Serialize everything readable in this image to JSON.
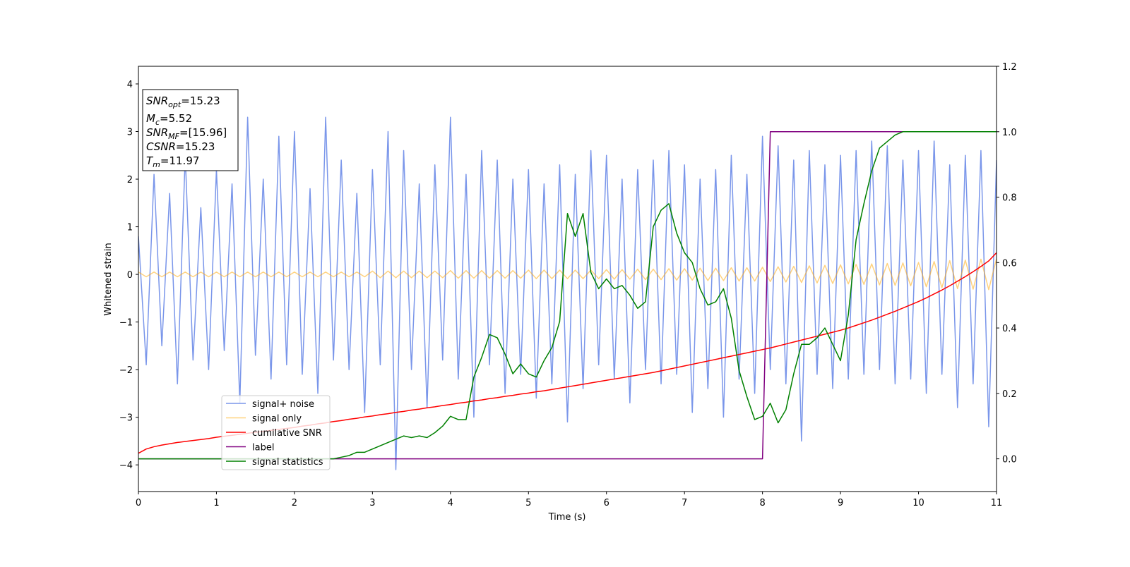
{
  "chart_data": {
    "type": "line",
    "xlabel": "Time (s)",
    "ylabel": "Whitened strain",
    "annotation": [
      {
        "main": "SNR",
        "sub": "opt",
        "rest": "=15.23"
      },
      {
        "main": "M",
        "sub": "c",
        "rest": "=5.52"
      },
      {
        "main": "SNR",
        "sub": "MF",
        "rest": "=[15.96]"
      },
      {
        "main": "CSNR",
        "rest": "=15.23"
      },
      {
        "main": "T",
        "sub": "m",
        "rest": "=11.97"
      }
    ],
    "xlim": [
      0,
      11
    ],
    "xticks": [
      0,
      1,
      2,
      3,
      4,
      5,
      6,
      7,
      8,
      9,
      10,
      11
    ],
    "ylim": [
      -4.56,
      4.37
    ],
    "yticks": [
      {
        "value": -4,
        "label": "−4"
      },
      {
        "value": -3,
        "label": "−3"
      },
      {
        "value": -2,
        "label": "−2"
      },
      {
        "value": -1,
        "label": "−1"
      },
      0,
      1,
      2,
      3,
      4
    ],
    "y2lim": [
      -0.1,
      1.2
    ],
    "y2ticks": [
      {
        "value": 0,
        "label": "0.0"
      },
      0.2,
      0.4,
      0.6,
      0.8,
      {
        "value": 1,
        "label": "1.0"
      },
      1.2
    ],
    "grid": false,
    "x": [
      0,
      0.1,
      0.2,
      0.3,
      0.4,
      0.5,
      0.6,
      0.7,
      0.8,
      0.9,
      1,
      1.1,
      1.2,
      1.3,
      1.4,
      1.5,
      1.6,
      1.7,
      1.8,
      1.9,
      2,
      2.1,
      2.2,
      2.3,
      2.4,
      2.5,
      2.6,
      2.7,
      2.8,
      2.9,
      3,
      3.1,
      3.2,
      3.3,
      3.4,
      3.5,
      3.6,
      3.7,
      3.8,
      3.9,
      4,
      4.1,
      4.2,
      4.3,
      4.4,
      4.5,
      4.6,
      4.7,
      4.8,
      4.9,
      5,
      5.1,
      5.2,
      5.3,
      5.4,
      5.5,
      5.6,
      5.7,
      5.8,
      5.9,
      6,
      6.1,
      6.2,
      6.3,
      6.4,
      6.5,
      6.6,
      6.7,
      6.8,
      6.9,
      7,
      7.1,
      7.2,
      7.3,
      7.4,
      7.5,
      7.6,
      7.7,
      7.8,
      7.9,
      8,
      8.1,
      8.2,
      8.3,
      8.4,
      8.5,
      8.6,
      8.7,
      8.8,
      8.9,
      9,
      9.1,
      9.2,
      9.3,
      9.4,
      9.5,
      9.6,
      9.7,
      9.8,
      9.9,
      10,
      10.1,
      10.2,
      10.3,
      10.4,
      10.5,
      10.6,
      10.7,
      10.8,
      10.9,
      11
    ],
    "series": [
      {
        "name": "signal+ noise",
        "color": "#4169e1",
        "alpha": 0.7,
        "axis": "y",
        "values": [
          0.8,
          -1.9,
          2.1,
          -1.5,
          1.7,
          -2.3,
          2.5,
          -1.8,
          1.4,
          -2.0,
          2.2,
          -1.6,
          1.9,
          -2.7,
          3.3,
          -1.7,
          2.0,
          -2.2,
          2.9,
          -1.9,
          3.0,
          -2.1,
          1.8,
          -2.5,
          3.3,
          -1.8,
          2.4,
          -2.0,
          1.7,
          -2.9,
          2.2,
          -1.9,
          3.0,
          -4.1,
          2.6,
          -2.0,
          1.9,
          -2.8,
          2.3,
          -1.8,
          3.3,
          -2.2,
          2.1,
          -3.0,
          2.6,
          -1.9,
          2.4,
          -2.5,
          2.0,
          -2.1,
          2.2,
          -2.6,
          1.9,
          -2.3,
          2.3,
          -3.1,
          2.1,
          -2.4,
          2.6,
          -1.9,
          2.5,
          -2.2,
          2.0,
          -2.7,
          2.2,
          -2.0,
          2.4,
          -2.3,
          2.6,
          -2.1,
          2.3,
          -2.9,
          2.0,
          -2.4,
          2.2,
          -3.0,
          2.5,
          -2.2,
          2.1,
          -2.5,
          2.9,
          -2.0,
          2.7,
          -2.3,
          2.4,
          -3.5,
          2.6,
          -2.1,
          2.3,
          -2.4,
          2.5,
          -2.2,
          2.6,
          -2.1,
          2.8,
          -2.0,
          2.7,
          -2.3,
          2.4,
          -2.2,
          2.6,
          -2.5,
          2.8,
          -2.1,
          2.3,
          -2.8,
          2.5,
          -2.3,
          2.6,
          -3.2,
          2.4
        ]
      },
      {
        "name": "signal only",
        "color": "#ffa500",
        "alpha": 0.5,
        "axis": "y",
        "values": [
          0.05,
          -0.05,
          0.05,
          -0.05,
          0.05,
          -0.05,
          0.05,
          -0.05,
          0.05,
          -0.05,
          0.05,
          -0.05,
          0.05,
          -0.05,
          0.05,
          -0.05,
          0.05,
          -0.05,
          0.05,
          -0.05,
          0.05,
          -0.05,
          0.05,
          -0.05,
          0.05,
          -0.05,
          0.05,
          -0.05,
          0.05,
          -0.05,
          0.07,
          -0.07,
          0.07,
          -0.07,
          0.07,
          -0.07,
          0.07,
          -0.07,
          0.07,
          -0.07,
          0.08,
          -0.08,
          0.08,
          -0.08,
          0.08,
          -0.08,
          0.08,
          -0.08,
          0.08,
          -0.08,
          0.09,
          -0.09,
          0.09,
          -0.09,
          0.09,
          -0.09,
          0.09,
          -0.09,
          0.09,
          -0.09,
          0.1,
          -0.1,
          0.1,
          -0.1,
          0.11,
          -0.11,
          0.11,
          -0.11,
          0.12,
          -0.12,
          0.12,
          -0.12,
          0.13,
          -0.13,
          0.13,
          -0.13,
          0.14,
          -0.14,
          0.14,
          -0.14,
          0.15,
          -0.15,
          0.16,
          -0.16,
          0.17,
          -0.17,
          0.18,
          -0.18,
          0.19,
          -0.19,
          0.2,
          -0.2,
          0.21,
          -0.21,
          0.22,
          -0.22,
          0.23,
          -0.23,
          0.24,
          -0.24,
          0.25,
          -0.26,
          0.27,
          -0.28,
          0.29,
          -0.3,
          0.3,
          -0.31,
          0.32,
          -0.32,
          0.33
        ]
      },
      {
        "name": "cumilative SNR",
        "color": "#ff0000",
        "alpha": 1,
        "axis": "y2",
        "values": [
          0.017,
          0.03,
          0.037,
          0.042,
          0.046,
          0.05,
          0.053,
          0.056,
          0.059,
          0.062,
          0.066,
          0.069,
          0.072,
          0.075,
          0.078,
          0.081,
          0.084,
          0.087,
          0.09,
          0.093,
          0.096,
          0.1,
          0.103,
          0.107,
          0.11,
          0.114,
          0.117,
          0.121,
          0.124,
          0.128,
          0.131,
          0.135,
          0.138,
          0.142,
          0.145,
          0.149,
          0.152,
          0.156,
          0.159,
          0.163,
          0.166,
          0.17,
          0.173,
          0.177,
          0.18,
          0.184,
          0.187,
          0.191,
          0.194,
          0.198,
          0.201,
          0.205,
          0.208,
          0.212,
          0.216,
          0.22,
          0.224,
          0.228,
          0.232,
          0.236,
          0.24,
          0.244,
          0.248,
          0.252,
          0.256,
          0.26,
          0.264,
          0.269,
          0.274,
          0.279,
          0.284,
          0.289,
          0.294,
          0.299,
          0.304,
          0.309,
          0.314,
          0.319,
          0.324,
          0.329,
          0.334,
          0.339,
          0.345,
          0.351,
          0.357,
          0.363,
          0.369,
          0.375,
          0.381,
          0.387,
          0.393,
          0.4,
          0.408,
          0.416,
          0.424,
          0.433,
          0.442,
          0.451,
          0.461,
          0.471,
          0.481,
          0.492,
          0.504,
          0.516,
          0.529,
          0.543,
          0.557,
          0.572,
          0.588,
          0.605,
          0.63
        ]
      },
      {
        "name": "label",
        "color": "#800080",
        "alpha": 1,
        "axis": "y2",
        "values": [
          0,
          0,
          0,
          0,
          0,
          0,
          0,
          0,
          0,
          0,
          0,
          0,
          0,
          0,
          0,
          0,
          0,
          0,
          0,
          0,
          0,
          0,
          0,
          0,
          0,
          0,
          0,
          0,
          0,
          0,
          0,
          0,
          0,
          0,
          0,
          0,
          0,
          0,
          0,
          0,
          0,
          0,
          0,
          0,
          0,
          0,
          0,
          0,
          0,
          0,
          0,
          0,
          0,
          0,
          0,
          0,
          0,
          0,
          0,
          0,
          0,
          0,
          0,
          0,
          0,
          0,
          0,
          0,
          0,
          0,
          0,
          0,
          0,
          0,
          0,
          0,
          0,
          0,
          0,
          0,
          0,
          1,
          1,
          1,
          1,
          1,
          1,
          1,
          1,
          1,
          1,
          1,
          1,
          1,
          1,
          1,
          1,
          1,
          1,
          1,
          1,
          1,
          1,
          1,
          1,
          1,
          1,
          1,
          1,
          1,
          1
        ]
      },
      {
        "name": "signal statistics",
        "color": "#008000",
        "alpha": 1,
        "axis": "y2",
        "values": [
          0,
          0,
          0,
          0,
          0,
          0,
          0,
          0,
          0,
          0,
          0,
          0,
          0,
          0,
          0,
          0,
          0,
          0,
          0,
          0,
          0,
          0,
          0,
          0,
          0,
          0,
          0.005,
          0.01,
          0.02,
          0.02,
          0.03,
          0.04,
          0.05,
          0.06,
          0.07,
          0.065,
          0.07,
          0.065,
          0.08,
          0.1,
          0.13,
          0.12,
          0.12,
          0.25,
          0.31,
          0.38,
          0.37,
          0.32,
          0.26,
          0.29,
          0.26,
          0.25,
          0.3,
          0.34,
          0.42,
          0.75,
          0.68,
          0.75,
          0.57,
          0.52,
          0.55,
          0.52,
          0.53,
          0.5,
          0.46,
          0.48,
          0.71,
          0.76,
          0.78,
          0.69,
          0.63,
          0.6,
          0.52,
          0.47,
          0.48,
          0.52,
          0.43,
          0.27,
          0.19,
          0.12,
          0.13,
          0.17,
          0.11,
          0.15,
          0.26,
          0.35,
          0.35,
          0.37,
          0.4,
          0.35,
          0.3,
          0.44,
          0.67,
          0.78,
          0.88,
          0.95,
          0.97,
          0.99,
          1,
          1,
          1,
          1,
          1,
          1,
          1,
          1,
          1,
          1,
          1,
          1,
          1
        ]
      }
    ]
  }
}
